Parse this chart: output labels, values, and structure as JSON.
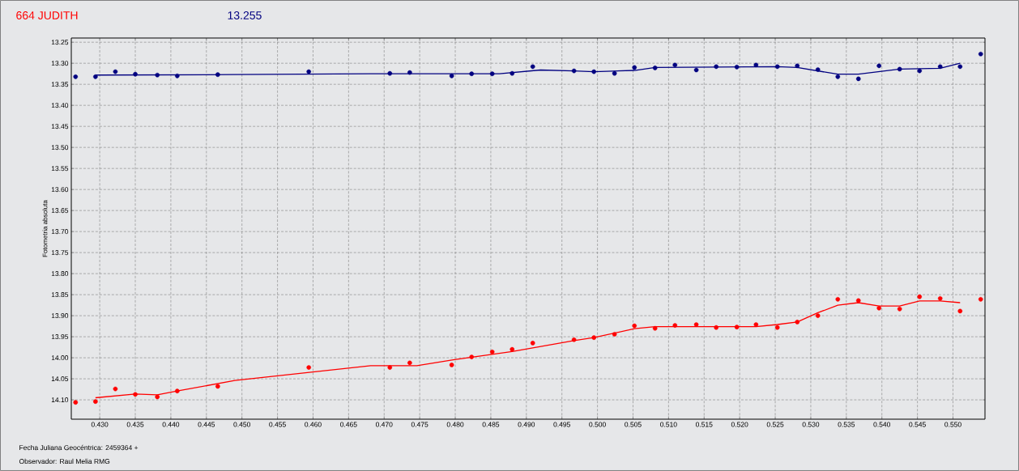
{
  "chart_data": {
    "type": "scatter",
    "title": "664 JUDITH",
    "subtitle": "13.255",
    "ylabel": "Fotometria absoluta",
    "annotations": [
      "Fecha Juliana Geocéntrica: 2459364 +",
      "Observador: Raul Melia RMG"
    ],
    "xlim": [
      0.426,
      0.5545
    ],
    "ylim": [
      14.146,
      13.24
    ],
    "xticks": [
      {
        "value": 0.43,
        "label": "0.430"
      },
      {
        "value": 0.435,
        "label": "0.435"
      },
      {
        "value": 0.44,
        "label": "0.440"
      },
      {
        "value": 0.445,
        "label": "0.445"
      },
      {
        "value": 0.45,
        "label": "0.450"
      },
      {
        "value": 0.455,
        "label": "0.455"
      },
      {
        "value": 0.46,
        "label": "0.460"
      },
      {
        "value": 0.465,
        "label": "0.465"
      },
      {
        "value": 0.47,
        "label": "0.470"
      },
      {
        "value": 0.475,
        "label": "0.475"
      },
      {
        "value": 0.48,
        "label": "0.480"
      },
      {
        "value": 0.485,
        "label": "0.485"
      },
      {
        "value": 0.49,
        "label": "0.490"
      },
      {
        "value": 0.495,
        "label": "0.495"
      },
      {
        "value": 0.5,
        "label": "0.500"
      },
      {
        "value": 0.505,
        "label": "0.505"
      },
      {
        "value": 0.51,
        "label": "0.510"
      },
      {
        "value": 0.515,
        "label": "0.515"
      },
      {
        "value": 0.52,
        "label": "0.520"
      },
      {
        "value": 0.525,
        "label": "0.525"
      },
      {
        "value": 0.53,
        "label": "0.530"
      },
      {
        "value": 0.535,
        "label": "0.535"
      },
      {
        "value": 0.54,
        "label": "0.540"
      },
      {
        "value": 0.545,
        "label": "0.545"
      },
      {
        "value": 0.55,
        "label": "0.550"
      }
    ],
    "yticks": [
      {
        "value": 13.25,
        "label": "13.25"
      },
      {
        "value": 13.3,
        "label": "13.30"
      },
      {
        "value": 13.35,
        "label": "13.35"
      },
      {
        "value": 13.4,
        "label": "13.40"
      },
      {
        "value": 13.45,
        "label": "13.45"
      },
      {
        "value": 13.5,
        "label": "13.50"
      },
      {
        "value": 13.55,
        "label": "13.55"
      },
      {
        "value": 13.6,
        "label": "13.60"
      },
      {
        "value": 13.65,
        "label": "13.65"
      },
      {
        "value": 13.7,
        "label": "13.70"
      },
      {
        "value": 13.75,
        "label": "13.75"
      },
      {
        "value": 13.8,
        "label": "13.80"
      },
      {
        "value": 13.85,
        "label": "13.85"
      },
      {
        "value": 13.9,
        "label": "13.90"
      },
      {
        "value": 13.95,
        "label": "13.95"
      },
      {
        "value": 14.0,
        "label": "14.00"
      },
      {
        "value": 14.05,
        "label": "14.05"
      },
      {
        "value": 14.1,
        "label": "14.10"
      }
    ],
    "grid": true,
    "marker": "circle",
    "series": [
      {
        "color": "#000080",
        "x": [
          0.4266,
          0.4294,
          0.4322,
          0.435,
          0.4381,
          0.4409,
          0.4466,
          0.4594,
          0.4708,
          0.4736,
          0.4795,
          0.4823,
          0.4852,
          0.488,
          0.4909,
          0.4967,
          0.4995,
          0.5024,
          0.5052,
          0.5081,
          0.5109,
          0.5139,
          0.5167,
          0.5196,
          0.5223,
          0.5253,
          0.5281,
          0.531,
          0.5338,
          0.5367,
          0.5396,
          0.5425,
          0.5453,
          0.5482,
          0.551,
          0.5539
        ],
        "values": [
          13.332,
          13.332,
          13.32,
          13.326,
          13.328,
          13.33,
          13.327,
          13.32,
          13.324,
          13.322,
          13.33,
          13.325,
          13.325,
          13.324,
          13.308,
          13.318,
          13.32,
          13.324,
          13.31,
          13.311,
          13.304,
          13.316,
          13.308,
          13.309,
          13.304,
          13.308,
          13.306,
          13.315,
          13.332,
          13.337,
          13.306,
          13.314,
          13.318,
          13.308,
          13.308,
          13.278
        ]
      },
      {
        "type": "line",
        "marker": "none",
        "color": "#000080",
        "x": [
          0.4294,
          0.4486,
          0.4681,
          0.4862,
          0.492,
          0.4967,
          0.4995,
          0.5052,
          0.5081,
          0.5253,
          0.5281,
          0.5338,
          0.5367,
          0.5425,
          0.5482,
          0.551
        ],
        "values": [
          13.328,
          13.327,
          13.325,
          13.325,
          13.316,
          13.318,
          13.32,
          13.317,
          13.31,
          13.308,
          13.31,
          13.326,
          13.326,
          13.314,
          13.312,
          13.3
        ]
      },
      {
        "color": "#ff0000",
        "x": [
          0.4266,
          0.4294,
          0.4322,
          0.435,
          0.4381,
          0.4409,
          0.4466,
          0.4594,
          0.4708,
          0.4736,
          0.4795,
          0.4823,
          0.4852,
          0.488,
          0.4909,
          0.4967,
          0.4995,
          0.5024,
          0.5052,
          0.5081,
          0.5109,
          0.5139,
          0.5167,
          0.5196,
          0.5223,
          0.5253,
          0.5281,
          0.531,
          0.5338,
          0.5367,
          0.5396,
          0.5425,
          0.5453,
          0.5482,
          0.551,
          0.5539
        ],
        "values": [
          14.106,
          14.104,
          14.074,
          14.087,
          14.093,
          14.079,
          14.068,
          14.023,
          14.023,
          14.012,
          14.017,
          13.998,
          13.986,
          13.98,
          13.965,
          13.957,
          13.952,
          13.944,
          13.924,
          13.93,
          13.923,
          13.921,
          13.928,
          13.927,
          13.921,
          13.928,
          13.915,
          13.9,
          13.861,
          13.864,
          13.882,
          13.884,
          13.855,
          13.859,
          13.889,
          13.861
        ]
      },
      {
        "type": "line",
        "marker": "none",
        "color": "#ff0000",
        "x": [
          0.4294,
          0.435,
          0.4381,
          0.4409,
          0.449,
          0.4681,
          0.4746,
          0.4797,
          0.488,
          0.4967,
          0.4995,
          0.5052,
          0.5081,
          0.5223,
          0.5253,
          0.5281,
          0.531,
          0.5338,
          0.5367,
          0.5396,
          0.5425,
          0.5453,
          0.5482,
          0.551
        ],
        "values": [
          14.095,
          14.086,
          14.088,
          14.079,
          14.054,
          14.019,
          14.019,
          14.005,
          13.985,
          13.959,
          13.952,
          13.931,
          13.926,
          13.926,
          13.921,
          13.915,
          13.893,
          13.875,
          13.869,
          13.877,
          13.877,
          13.865,
          13.865,
          13.869
        ]
      }
    ]
  }
}
